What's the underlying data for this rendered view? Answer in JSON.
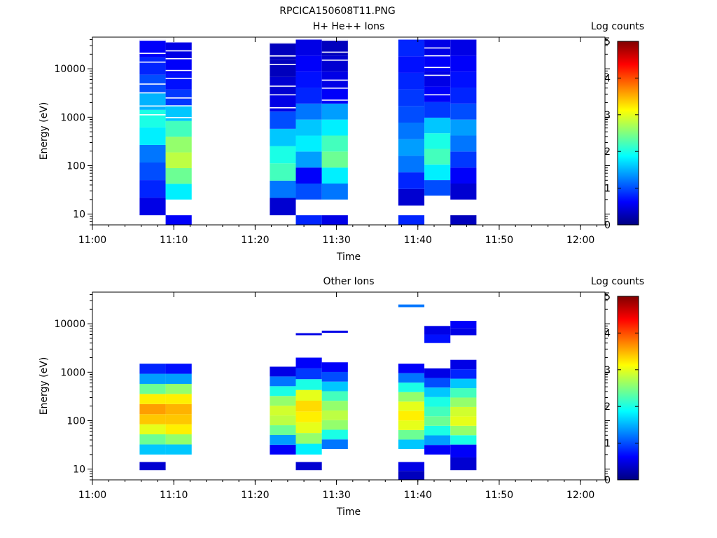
{
  "figure_title": "RPCICA150608T11.PNG",
  "colormap": [
    "#000080",
    "#0000ff",
    "#0080ff",
    "#00ffff",
    "#80ff80",
    "#ffff00",
    "#ff8000",
    "#ff0000",
    "#800000"
  ],
  "chart_data": [
    {
      "type": "heatmap",
      "title": "H+ He++ Ions",
      "xlabel": "Time",
      "ylabel": "Energy (eV)",
      "colorbar_label": "Log counts",
      "colorbar_ticks": [
        "0",
        "1",
        "2",
        "3",
        "4",
        "5"
      ],
      "colorbar_range": [
        0,
        5
      ],
      "x_tick_labels": [
        "11:00",
        "11:10",
        "11:20",
        "11:30",
        "11:40",
        "11:50",
        "12:00"
      ],
      "x_tick_minutes": [
        0,
        10,
        20,
        30,
        40,
        50,
        60
      ],
      "x_range_minutes": [
        0,
        63
      ],
      "y_scale": "log",
      "y_range": [
        6,
        45000
      ],
      "y_tick_labels": [
        "10",
        "100",
        "1000",
        "10000"
      ],
      "y_tick_values": [
        10,
        100,
        1000,
        10000
      ],
      "columns": [
        {
          "t0": 5.8,
          "t1": 9.0,
          "e0": 9.5,
          "e1": 40000,
          "levels": [
            0.5,
            0.8,
            1.0,
            1.2,
            1.8,
            2.0,
            1.5,
            1.0,
            0.8,
            0.6
          ],
          "gap_above": 500
        },
        {
          "t0": 9.0,
          "t1": 12.2,
          "e0": 20,
          "e1": 35000,
          "levels": [
            1.8,
            2.4,
            2.8,
            2.6,
            2.2,
            1.6,
            0.9,
            0.7,
            0.6,
            0.5
          ],
          "gap_above": 600
        },
        {
          "t0": 9.0,
          "t1": 12.2,
          "e0": 6,
          "e1": 9.5,
          "levels": [
            0.6
          ]
        },
        {
          "t0": 21.8,
          "t1": 25.0,
          "e0": 9.5,
          "e1": 35000,
          "levels": [
            0.4,
            1.2,
            2.2,
            2.0,
            1.6,
            1.0,
            0.5,
            0.4,
            0.3,
            0.3
          ],
          "gap_above": 800
        },
        {
          "t0": 25.0,
          "t1": 28.2,
          "e0": 20,
          "e1": 40000,
          "levels": [
            1.0,
            0.6,
            1.4,
            1.8,
            1.6,
            1.2,
            0.8,
            0.7,
            0.6,
            0.5
          ]
        },
        {
          "t0": 25.0,
          "t1": 28.2,
          "e0": 6,
          "e1": 9.5,
          "levels": [
            0.8
          ]
        },
        {
          "t0": 28.2,
          "t1": 31.4,
          "e0": 20,
          "e1": 40000,
          "levels": [
            1.2,
            1.8,
            2.4,
            2.2,
            1.8,
            1.4,
            0.6,
            0.5,
            0.4,
            0.3
          ],
          "gap_above": 900
        },
        {
          "t0": 28.2,
          "t1": 31.4,
          "e0": 6,
          "e1": 9.5,
          "levels": [
            0.5
          ]
        },
        {
          "t0": 37.6,
          "t1": 40.8,
          "e0": 15,
          "e1": 40000,
          "levels": [
            0.4,
            0.8,
            1.2,
            1.4,
            1.2,
            1.0,
            0.9,
            0.8,
            0.7,
            0.8
          ]
        },
        {
          "t0": 37.6,
          "t1": 40.8,
          "e0": 6,
          "e1": 9.5,
          "levels": [
            0.8
          ]
        },
        {
          "t0": 40.8,
          "t1": 44.0,
          "e0": 24,
          "e1": 40000,
          "levels": [
            1.0,
            1.8,
            2.2,
            2.0,
            1.6,
            0.9,
            0.6,
            0.5,
            0.6,
            0.5
          ],
          "gap_above": 1500
        },
        {
          "t0": 44.0,
          "t1": 47.2,
          "e0": 20,
          "e1": 40000,
          "levels": [
            0.4,
            0.6,
            0.9,
            1.2,
            1.4,
            1.0,
            0.8,
            0.7,
            0.6,
            0.5
          ]
        },
        {
          "t0": 44.0,
          "t1": 47.2,
          "e0": 6,
          "e1": 9.5,
          "levels": [
            0.3
          ]
        }
      ]
    },
    {
      "type": "heatmap",
      "title": "Other Ions",
      "xlabel": "Time",
      "ylabel": "Energy (eV)",
      "colorbar_label": "Log counts",
      "colorbar_ticks": [
        "0",
        "1",
        "2",
        "3",
        "4",
        "5"
      ],
      "colorbar_range": [
        0,
        5
      ],
      "x_tick_labels": [
        "11:00",
        "11:10",
        "11:20",
        "11:30",
        "11:40",
        "11:50",
        "12:00"
      ],
      "x_tick_minutes": [
        0,
        10,
        20,
        30,
        40,
        50,
        60
      ],
      "x_range_minutes": [
        0,
        63
      ],
      "y_scale": "log",
      "y_range": [
        6,
        45000
      ],
      "y_tick_labels": [
        "10",
        "100",
        "1000",
        "10000"
      ],
      "y_tick_values": [
        10,
        100,
        1000,
        10000
      ],
      "columns": [
        {
          "t0": 5.8,
          "t1": 9.0,
          "e0": 20,
          "e1": 1500,
          "levels": [
            1.6,
            2.4,
            3.0,
            3.4,
            3.6,
            3.2,
            2.4,
            1.4,
            0.8
          ]
        },
        {
          "t0": 5.8,
          "t1": 9.0,
          "e0": 9.5,
          "e1": 14,
          "levels": [
            0.4
          ]
        },
        {
          "t0": 9.0,
          "t1": 12.2,
          "e0": 20,
          "e1": 1500,
          "levels": [
            1.6,
            2.6,
            3.2,
            3.4,
            3.5,
            3.2,
            2.6,
            1.4,
            0.7
          ]
        },
        {
          "t0": 21.8,
          "t1": 25.0,
          "e0": 20,
          "e1": 1300,
          "levels": [
            0.6,
            1.4,
            2.4,
            2.8,
            2.9,
            2.6,
            2.0,
            1.2,
            0.5
          ]
        },
        {
          "t0": 25.0,
          "t1": 28.2,
          "e0": 20,
          "e1": 2000,
          "levels": [
            1.8,
            2.6,
            3.0,
            3.2,
            3.3,
            3.0,
            2.0,
            0.9,
            0.6
          ]
        },
        {
          "t0": 25.0,
          "t1": 28.2,
          "e0": 9.5,
          "e1": 14,
          "levels": [
            0.4
          ]
        },
        {
          "t0": 25.0,
          "t1": 28.2,
          "e0": 5800,
          "e1": 6400,
          "levels": [
            0.5
          ]
        },
        {
          "t0": 28.2,
          "t1": 31.4,
          "e0": 26,
          "e1": 1600,
          "levels": [
            1.2,
            2.0,
            2.6,
            2.8,
            2.6,
            2.2,
            1.6,
            1.0,
            0.6
          ]
        },
        {
          "t0": 28.2,
          "t1": 31.4,
          "e0": 6500,
          "e1": 7200,
          "levels": [
            0.5
          ]
        },
        {
          "t0": 37.6,
          "t1": 40.8,
          "e0": 26,
          "e1": 1500,
          "levels": [
            1.6,
            2.4,
            3.0,
            3.2,
            3.0,
            2.6,
            2.0,
            1.2,
            0.6
          ]
        },
        {
          "t0": 37.6,
          "t1": 40.8,
          "e0": 6,
          "e1": 14,
          "levels": [
            0.3,
            0.5
          ]
        },
        {
          "t0": 37.6,
          "t1": 40.8,
          "e0": 22000,
          "e1": 25000,
          "levels": [
            1.2
          ]
        },
        {
          "t0": 40.8,
          "t1": 44.0,
          "e0": 20,
          "e1": 1200,
          "levels": [
            0.6,
            1.4,
            2.0,
            2.4,
            2.2,
            2.0,
            1.6,
            1.0,
            0.5
          ]
        },
        {
          "t0": 40.8,
          "t1": 44.0,
          "e0": 4000,
          "e1": 9000,
          "levels": [
            0.7,
            0.5
          ]
        },
        {
          "t0": 44.0,
          "t1": 47.2,
          "e0": 32,
          "e1": 1800,
          "levels": [
            2.0,
            2.6,
            3.0,
            2.9,
            2.6,
            2.2,
            1.6,
            0.8,
            0.5
          ]
        },
        {
          "t0": 44.0,
          "t1": 47.2,
          "e0": 9.5,
          "e1": 32,
          "levels": [
            0.4,
            0.6
          ]
        },
        {
          "t0": 44.0,
          "t1": 47.2,
          "e0": 5800,
          "e1": 11500,
          "levels": [
            0.5,
            0.6
          ]
        }
      ]
    }
  ]
}
